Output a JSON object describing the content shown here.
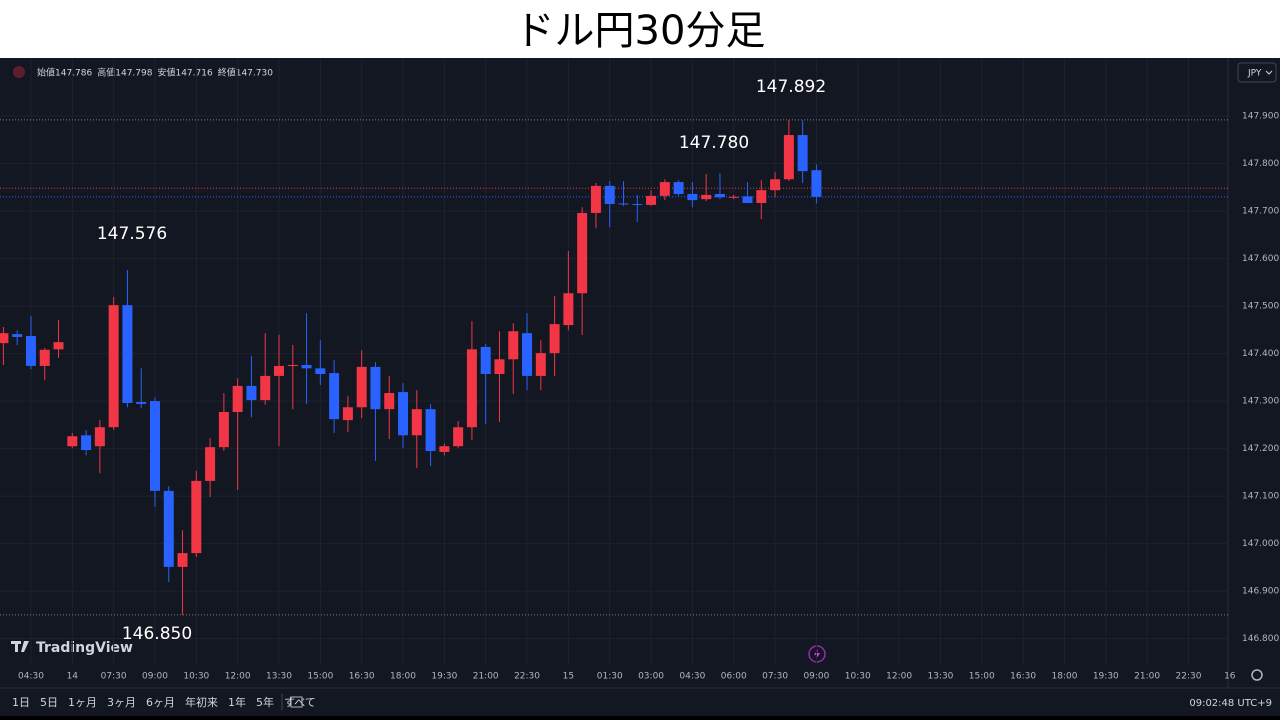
{
  "title": "ドル円30分足",
  "header": {
    "ohlc": [
      {
        "label": "始値",
        "value": "147.786"
      },
      {
        "label": "高値",
        "value": "147.798"
      },
      {
        "label": "安値",
        "value": "147.716"
      },
      {
        "label": "終値",
        "value": "147.730"
      }
    ],
    "currency": "JPY",
    "logo": "TradingView"
  },
  "toolbar": {
    "ranges": [
      "1日",
      "5日",
      "1ヶ月",
      "3ヶ月",
      "6ヶ月",
      "年初来",
      "1年",
      "5年",
      "すべて"
    ],
    "clock": "09:02:48 UTC+9"
  },
  "chart_data": {
    "type": "candlestick",
    "up_color": "#f23645",
    "down_color": "#2962ff",
    "grid": true,
    "categories": [
      null,
      null,
      "04:30",
      null,
      null,
      "14",
      null,
      null,
      "07:30",
      null,
      null,
      "09:00",
      null,
      null,
      "10:30",
      null,
      null,
      "12:00",
      null,
      null,
      "13:30",
      null,
      null,
      "15:00",
      null,
      null,
      "16:30",
      null,
      null,
      "18:00",
      null,
      null,
      "19:30",
      null,
      null,
      "21:00",
      null,
      null,
      "22:30",
      null,
      null,
      "15",
      null,
      null,
      "01:30",
      null,
      null,
      "03:00",
      null,
      null,
      "04:30",
      null,
      null,
      "06:00",
      null,
      null,
      "07:30",
      null,
      null,
      "09:00",
      null,
      null,
      "10:30",
      null,
      null,
      "12:00",
      null,
      null,
      "13:30",
      null,
      null,
      "15:00",
      null,
      null,
      "16:30",
      null,
      null,
      "18:00",
      null,
      null,
      "19:30",
      null,
      null,
      "21:00",
      null,
      null,
      "22:30",
      null,
      null,
      "16"
    ],
    "open": [
      147.422,
      147.441,
      147.437,
      147.374,
      147.409,
      147.205,
      147.228,
      147.205,
      147.245,
      147.502,
      147.298,
      147.3,
      147.111,
      146.951,
      146.98,
      147.132,
      147.203,
      147.277,
      147.332,
      147.302,
      147.353,
      147.374,
      147.376,
      147.369,
      147.359,
      147.26,
      147.287,
      147.372,
      147.283,
      147.319,
      147.228,
      147.283,
      147.193,
      147.205,
      147.245,
      147.414,
      147.357,
      147.388,
      147.443,
      147.353,
      147.401,
      147.46,
      147.527,
      147.696,
      147.753,
      147.716,
      147.715,
      147.713,
      147.732,
      147.761,
      147.736,
      147.725,
      147.736,
      147.729,
      147.731,
      147.717,
      147.744,
      147.767,
      147.86,
      147.786,
      null,
      null,
      null,
      null,
      null,
      null,
      null,
      null,
      null,
      null,
      null,
      null,
      null,
      null,
      null,
      null,
      null,
      null,
      null,
      null,
      null,
      null,
      null,
      null,
      null,
      null,
      null,
      null,
      null,
      null
    ],
    "high": [
      147.456,
      147.449,
      147.479,
      147.412,
      147.471,
      147.233,
      147.239,
      147.26,
      147.519,
      147.576,
      147.369,
      147.308,
      147.121,
      147.028,
      147.153,
      147.222,
      147.317,
      147.348,
      147.395,
      147.443,
      147.44,
      147.418,
      147.485,
      147.428,
      147.386,
      147.311,
      147.407,
      147.382,
      147.353,
      147.338,
      147.323,
      147.294,
      147.211,
      147.258,
      147.468,
      147.42,
      147.447,
      147.464,
      147.485,
      147.428,
      147.521,
      147.616,
      147.708,
      147.759,
      147.763,
      147.763,
      147.734,
      147.744,
      147.767,
      147.765,
      147.761,
      147.778,
      147.78,
      147.734,
      147.761,
      147.765,
      147.782,
      147.892,
      147.891,
      147.798,
      null,
      null,
      null,
      null,
      null,
      null,
      null,
      null,
      null,
      null,
      null,
      null,
      null,
      null,
      null,
      null,
      null,
      null,
      null,
      null,
      null,
      null,
      null,
      null,
      null,
      null,
      null,
      null,
      null,
      null
    ],
    "low": [
      147.376,
      147.418,
      147.367,
      147.344,
      147.391,
      147.201,
      147.186,
      147.148,
      147.239,
      147.287,
      147.285,
      147.077,
      146.919,
      146.85,
      146.972,
      147.098,
      147.195,
      147.113,
      147.266,
      147.292,
      147.205,
      147.283,
      147.294,
      147.334,
      147.233,
      147.235,
      147.264,
      147.174,
      147.22,
      147.201,
      147.159,
      147.163,
      147.186,
      147.201,
      147.218,
      147.252,
      147.256,
      147.315,
      147.323,
      147.323,
      147.353,
      147.449,
      147.439,
      147.664,
      147.666,
      147.711,
      147.677,
      147.711,
      147.723,
      147.732,
      147.708,
      147.721,
      147.725,
      147.725,
      147.717,
      147.683,
      147.729,
      147.763,
      147.759,
      147.716,
      null,
      null,
      null,
      null,
      null,
      null,
      null,
      null,
      null,
      null,
      null,
      null,
      null,
      null,
      null,
      null,
      null,
      null,
      null,
      null,
      null,
      null,
      null,
      null,
      null,
      null,
      null,
      null,
      null,
      null
    ],
    "close": [
      147.443,
      147.435,
      147.374,
      147.408,
      147.424,
      147.226,
      147.197,
      147.245,
      147.502,
      147.296,
      147.294,
      147.111,
      146.951,
      146.98,
      147.132,
      147.203,
      147.277,
      147.332,
      147.302,
      147.353,
      147.374,
      147.376,
      147.369,
      147.357,
      147.262,
      147.287,
      147.372,
      147.283,
      147.317,
      147.228,
      147.283,
      147.195,
      147.205,
      147.245,
      147.409,
      147.357,
      147.388,
      147.447,
      147.353,
      147.401,
      147.462,
      147.527,
      147.696,
      147.753,
      147.715,
      147.714,
      147.713,
      147.732,
      147.761,
      147.736,
      147.723,
      147.734,
      147.729,
      147.73,
      147.717,
      147.744,
      147.767,
      147.86,
      147.784,
      147.73,
      null,
      null,
      null,
      null,
      null,
      null,
      null,
      null,
      null,
      null,
      null,
      null,
      null,
      null,
      null,
      null,
      null,
      null,
      null,
      null,
      null,
      null,
      null,
      null,
      null,
      null,
      null,
      null,
      null,
      null
    ],
    "ylim": [
      146.755,
      148.018
    ],
    "yticks": [
      {
        "value": 146.8,
        "label": "146.800"
      },
      {
        "value": 146.9,
        "label": "146.900"
      },
      {
        "value": 147.0,
        "label": "147.000"
      },
      {
        "value": 147.1,
        "label": "147.100"
      },
      {
        "value": 147.2,
        "label": "147.200"
      },
      {
        "value": 147.3,
        "label": "147.300"
      },
      {
        "value": 147.4,
        "label": "147.400"
      },
      {
        "value": 147.5,
        "label": "147.500"
      },
      {
        "value": 147.6,
        "label": "147.600"
      },
      {
        "value": 147.7,
        "label": "147.700"
      },
      {
        "value": 147.8,
        "label": "147.800"
      },
      {
        "value": 147.9,
        "label": "147.900"
      }
    ],
    "price_lines": [
      {
        "value": 147.892,
        "color": "#787b86"
      },
      {
        "value": 147.748,
        "color": "#f23645"
      },
      {
        "value": 147.73,
        "color": "#2962ff"
      },
      {
        "value": 146.85,
        "color": "#787b86"
      }
    ],
    "annotations": [
      "147.576",
      "146.850",
      "147.780",
      "147.892"
    ]
  }
}
